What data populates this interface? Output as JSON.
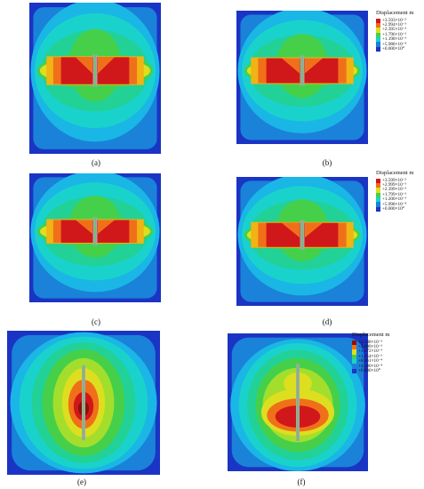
{
  "legend_title": "Displacement m",
  "palette": {
    "red": "#d0181a",
    "orange": "#f0701a",
    "yellow_orange": "#f0b414",
    "yellow": "#dede20",
    "yellow_green": "#a4de2c",
    "green": "#46d04a",
    "cyan_green": "#22d196",
    "cyan": "#1ad2cc",
    "light_blue": "#19b6e6",
    "blue": "#1a82d8",
    "deep_blue": "#1a34c4",
    "dark_red": "#8c1208",
    "gray": "#a7a7a7"
  },
  "panels": [
    {
      "caption": "(a)"
    },
    {
      "caption": "(b)"
    },
    {
      "caption": "(c)"
    },
    {
      "caption": "(d)"
    },
    {
      "caption": "(e)"
    },
    {
      "caption": "(f)"
    }
  ],
  "legends": [
    {
      "entries": [
        {
          "label": "+3.593×10⁻³",
          "color": "#d0181a"
        },
        {
          "label": "+2.994×10⁻³",
          "color": "#f0701a"
        },
        {
          "label": "+2.395×10⁻³",
          "color": "#dede20"
        },
        {
          "label": "+1.796×10⁻³",
          "color": "#46d04a"
        },
        {
          "label": "+1.198×10⁻³",
          "color": "#1ad2cc"
        },
        {
          "label": "+5.988×10⁻⁴",
          "color": "#1a82d8"
        },
        {
          "label": "+0.000×10⁰",
          "color": "#1a34c4"
        }
      ]
    },
    {
      "entries": [
        {
          "label": "+3.599×10⁻³",
          "color": "#d0181a"
        },
        {
          "label": "+2.999×10⁻³",
          "color": "#f0701a"
        },
        {
          "label": "+2.399×10⁻³",
          "color": "#dede20"
        },
        {
          "label": "+1.799×10⁻³",
          "color": "#46d04a"
        },
        {
          "label": "+1.200×10⁻³",
          "color": "#1ad2cc"
        },
        {
          "label": "+5.998×10⁻⁴",
          "color": "#1a82d8"
        },
        {
          "label": "+0.000×10⁰",
          "color": "#1a34c4"
        }
      ]
    },
    {
      "entries": [
        {
          "label": "+2.508×10⁻³",
          "color": "#8c1208"
        },
        {
          "label": "+2.090×10⁻³",
          "color": "#f0701a"
        },
        {
          "label": "+1.672×10⁻³",
          "color": "#dede20"
        },
        {
          "label": "+1.254×10⁻³",
          "color": "#46d04a"
        },
        {
          "label": "+8.361×10⁻⁴",
          "color": "#1ad2cc"
        },
        {
          "label": "+4.180×10⁻⁴",
          "color": "#1a82d8"
        },
        {
          "label": "+0.000×10⁰",
          "color": "#1a34c4"
        }
      ]
    }
  ]
}
